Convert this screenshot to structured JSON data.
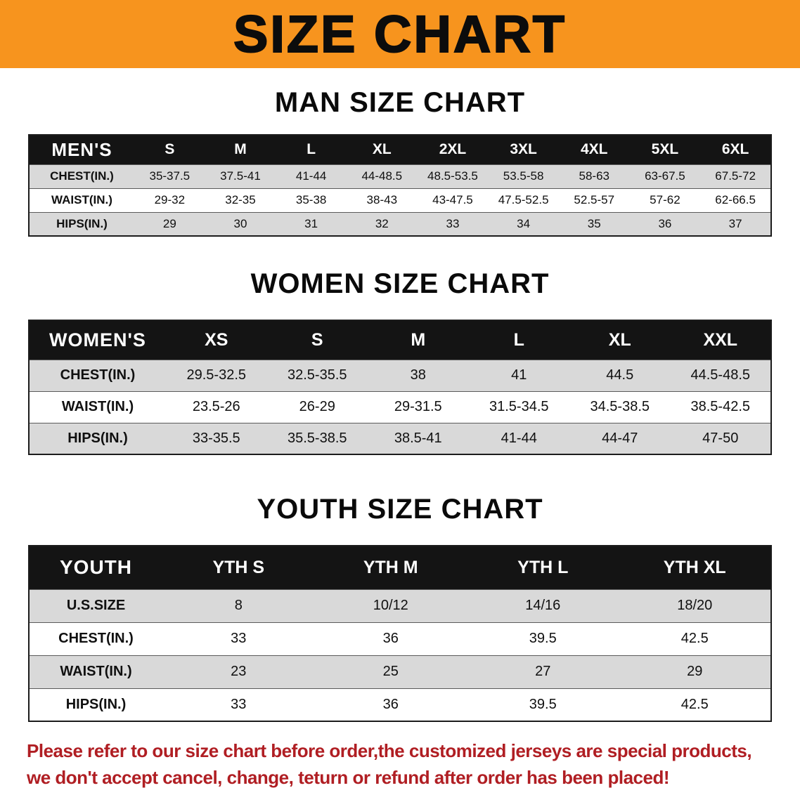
{
  "banner": {
    "title": "SIZE CHART"
  },
  "colors": {
    "banner_orange": "#f7941e",
    "table_header_black": "#141414",
    "row_gray": "#d9d9d9",
    "disclaimer_red": "#b01e23"
  },
  "sections": {
    "men": {
      "heading": "MAN SIZE CHART",
      "table": {
        "header": [
          "MEN'S",
          "S",
          "M",
          "L",
          "XL",
          "2XL",
          "3XL",
          "4XL",
          "5XL",
          "6XL"
        ],
        "rows": [
          [
            "CHEST(IN.)",
            "35-37.5",
            "37.5-41",
            "41-44",
            "44-48.5",
            "48.5-53.5",
            "53.5-58",
            "58-63",
            "63-67.5",
            "67.5-72"
          ],
          [
            "WAIST(IN.)",
            "29-32",
            "32-35",
            "35-38",
            "38-43",
            "43-47.5",
            "47.5-52.5",
            "52.5-57",
            "57-62",
            "62-66.5"
          ],
          [
            "HIPS(IN.)",
            "29",
            "30",
            "31",
            "32",
            "33",
            "34",
            "35",
            "36",
            "37"
          ]
        ]
      }
    },
    "women": {
      "heading": "WOMEN SIZE CHART",
      "table": {
        "header": [
          "WOMEN'S",
          "XS",
          "S",
          "M",
          "L",
          "XL",
          "XXL"
        ],
        "rows": [
          [
            "CHEST(IN.)",
            "29.5-32.5",
            "32.5-35.5",
            "38",
            "41",
            "44.5",
            "44.5-48.5"
          ],
          [
            "WAIST(IN.)",
            "23.5-26",
            "26-29",
            "29-31.5",
            "31.5-34.5",
            "34.5-38.5",
            "38.5-42.5"
          ],
          [
            "HIPS(IN.)",
            "33-35.5",
            "35.5-38.5",
            "38.5-41",
            "41-44",
            "44-47",
            "47-50"
          ]
        ]
      }
    },
    "youth": {
      "heading": "YOUTH SIZE CHART",
      "table": {
        "header": [
          "YOUTH",
          "YTH S",
          "YTH M",
          "YTH L",
          "YTH XL"
        ],
        "rows": [
          [
            "U.S.SIZE",
            "8",
            "10/12",
            "14/16",
            "18/20"
          ],
          [
            "CHEST(IN.)",
            "33",
            "36",
            "39.5",
            "42.5"
          ],
          [
            "WAIST(IN.)",
            "23",
            "25",
            "27",
            "29"
          ],
          [
            "HIPS(IN.)",
            "33",
            "36",
            "39.5",
            "42.5"
          ]
        ]
      }
    }
  },
  "disclaimer": {
    "line1": "Please refer to our size chart before order,the customized jerseys are special products,",
    "line2": "we don't accept cancel, change, teturn or refund after order has been placed!"
  }
}
